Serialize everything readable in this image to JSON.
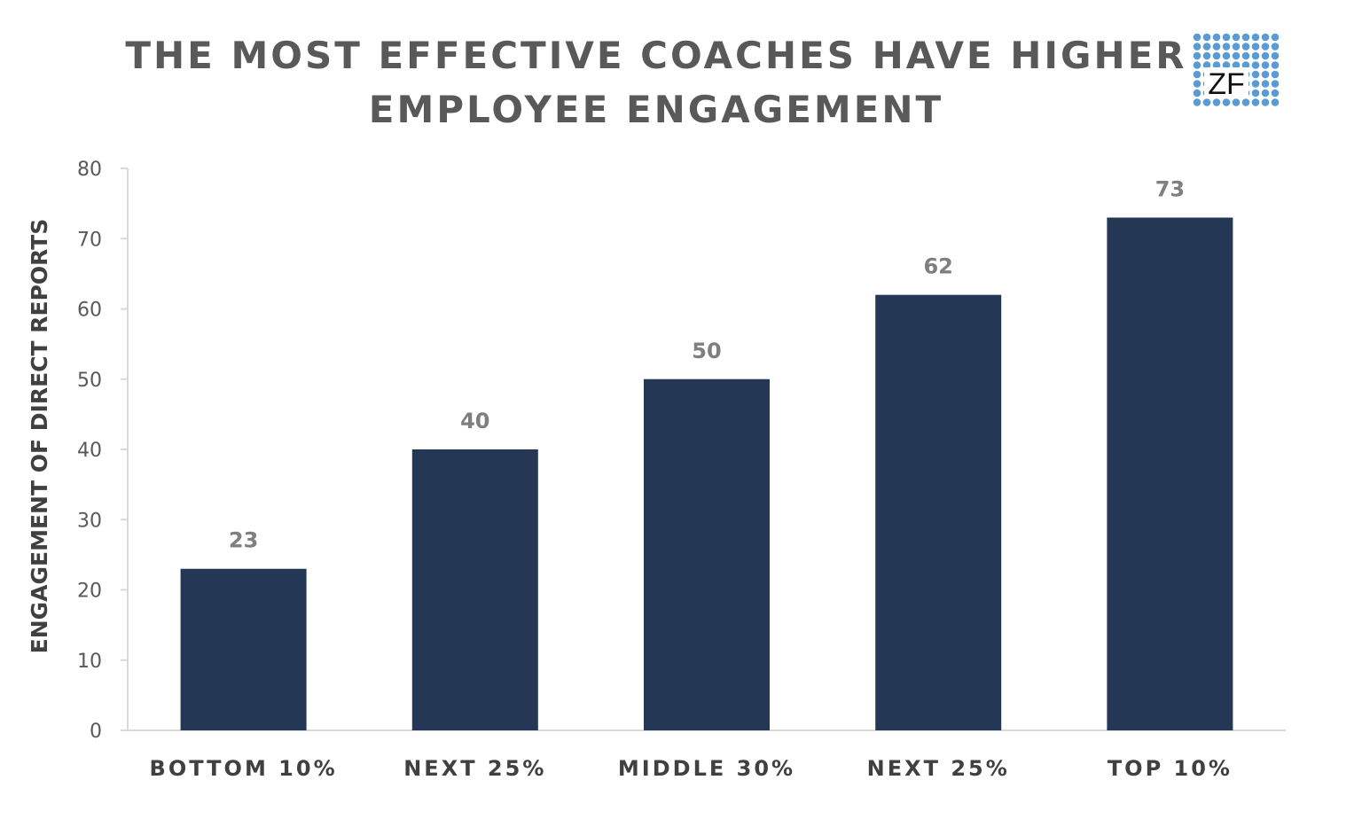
{
  "title_lines": [
    "THE MOST EFFECTIVE COACHES HAVE HIGHER",
    "EMPLOYEE ENGAGEMENT"
  ],
  "logo": {
    "text": "ZF",
    "dot_color": "#5b9bd5"
  },
  "chart_data": {
    "type": "bar",
    "title": "THE MOST EFFECTIVE COACHES HAVE HIGHER EMPLOYEE ENGAGEMENT",
    "xlabel": "",
    "ylabel": "ENGAGEMENT OF DIRECT REPORTS",
    "categories": [
      "BOTTOM 10%",
      "NEXT 25%",
      "MIDDLE 30%",
      "NEXT 25%",
      "TOP 10%"
    ],
    "values": [
      23,
      40,
      50,
      62,
      73
    ],
    "ylim": [
      0,
      80
    ],
    "yticks": [
      0,
      10,
      20,
      30,
      40,
      50,
      60,
      70,
      80
    ],
    "grid": false,
    "bar_color": "#243855",
    "data_labels": true
  }
}
